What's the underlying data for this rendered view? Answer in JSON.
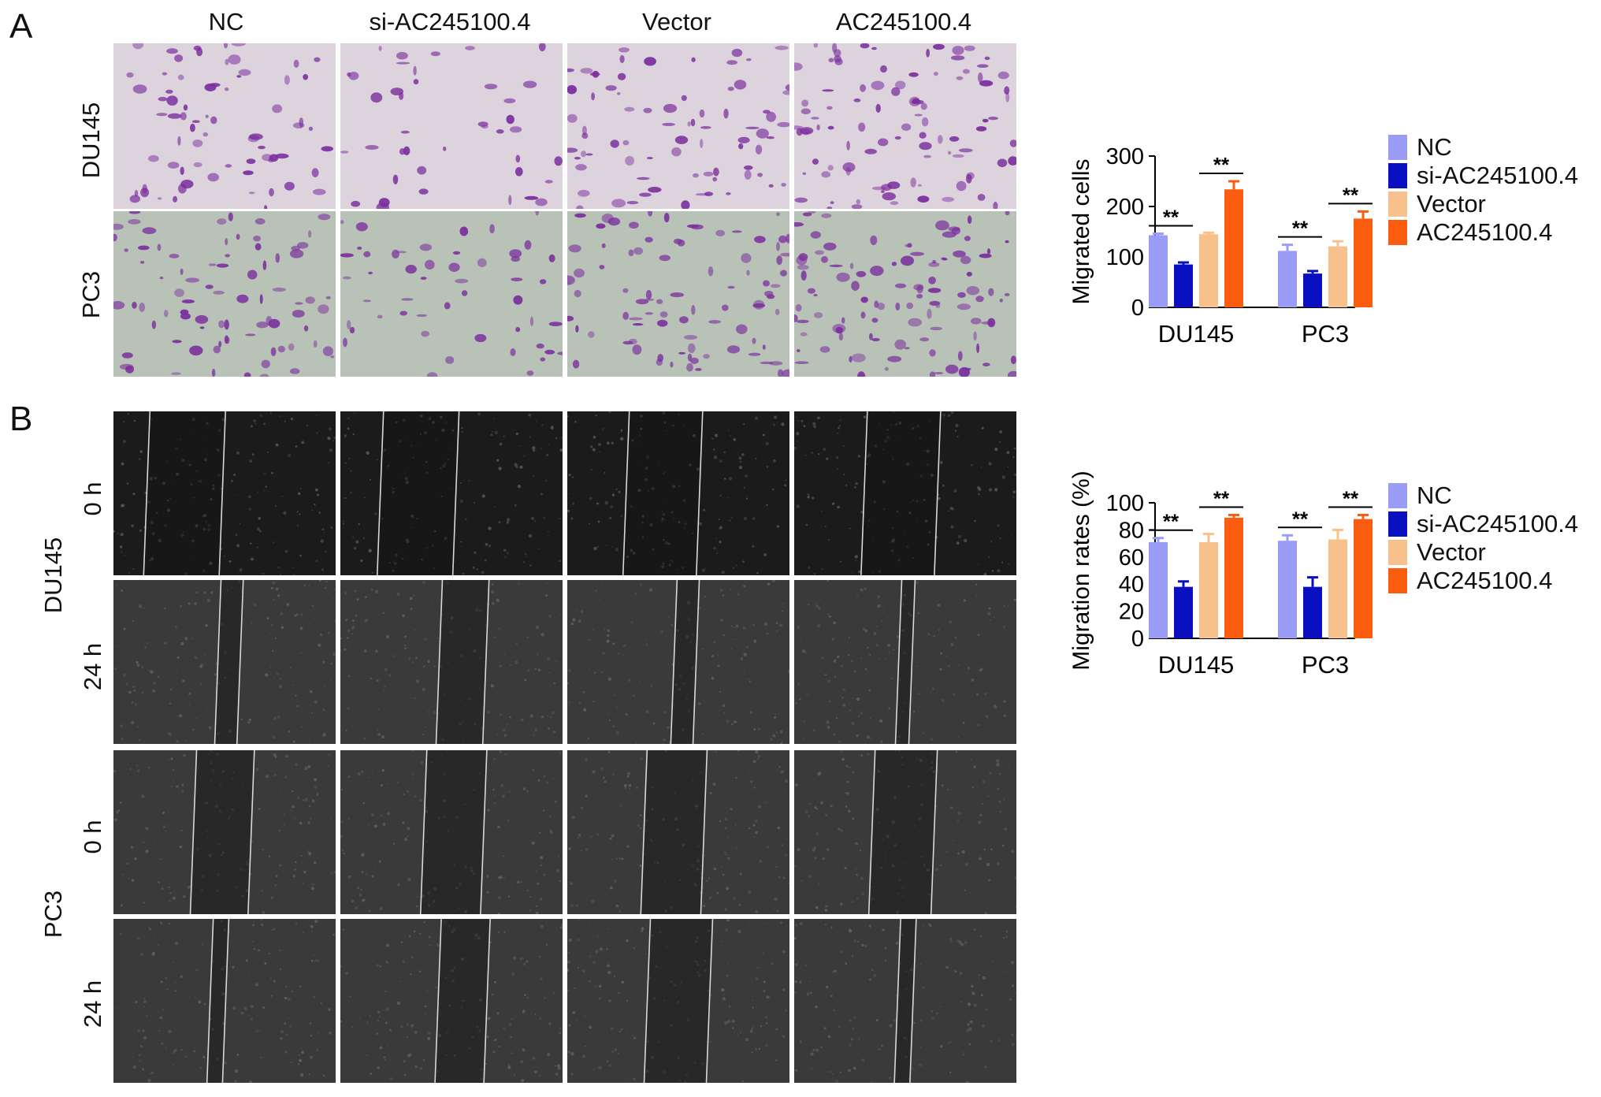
{
  "panels": {
    "a": {
      "letter": "A",
      "columns": [
        "NC",
        "si-AC245100.4",
        "Vector",
        "AC245100.4"
      ],
      "rows": [
        "DU145",
        "PC3"
      ]
    },
    "b": {
      "letter": "B",
      "cell_lines": [
        "DU145",
        "PC3"
      ],
      "timepoints": [
        "0 h",
        "24 h"
      ]
    }
  },
  "micrograph_colors": {
    "transwell_du145_bg": "#ddd3dd",
    "transwell_pc3_bg": "#b9c2b6",
    "transwell_stain": "#7b2f9e",
    "scratch_du145_0h_bg": "#1b1b1b",
    "scratch_bg": "#3a3a3a",
    "scratch_edge": "#d8d8d8"
  },
  "scratch_gap": {
    "DU145": {
      "0 h": [
        0.34,
        0.34,
        0.33,
        0.33
      ],
      "24 h": [
        0.1,
        0.21,
        0.1,
        0.06
      ]
    },
    "PC3": {
      "0 h": [
        0.26,
        0.27,
        0.27,
        0.28
      ],
      "24 h": [
        0.07,
        0.22,
        0.28,
        0.07
      ]
    }
  },
  "chart_data": [
    {
      "type": "bar",
      "categories": [
        "DU145",
        "PC3"
      ],
      "ylabel": "Migrated cells",
      "xlabel": "",
      "ylim": [
        0,
        300
      ],
      "yticks": [
        0,
        100,
        200,
        300
      ],
      "legend_position": "right",
      "series": [
        {
          "name": "NC",
          "color": "#9b9cf6",
          "values": [
            143,
            112
          ],
          "errors": [
            3,
            12
          ]
        },
        {
          "name": "si-AC245100.4",
          "color": "#0a0fbf",
          "values": [
            85,
            67
          ],
          "errors": [
            4,
            5
          ]
        },
        {
          "name": "Vector",
          "color": "#f7c08c",
          "values": [
            145,
            121
          ],
          "errors": [
            3,
            10
          ]
        },
        {
          "name": "AC245100.4",
          "color": "#fa5d0f",
          "values": [
            234,
            176
          ],
          "errors": [
            16,
            14
          ]
        }
      ],
      "significance": [
        {
          "category": "DU145",
          "pair": [
            0,
            1
          ],
          "label": "**"
        },
        {
          "category": "DU145",
          "pair": [
            2,
            3
          ],
          "label": "**"
        },
        {
          "category": "PC3",
          "pair": [
            0,
            1
          ],
          "label": "**"
        },
        {
          "category": "PC3",
          "pair": [
            2,
            3
          ],
          "label": "**"
        }
      ]
    },
    {
      "type": "bar",
      "categories": [
        "DU145",
        "PC3"
      ],
      "ylabel": "Migration rates (%)",
      "xlabel": "",
      "ylim": [
        0,
        100
      ],
      "yticks": [
        0,
        20,
        40,
        60,
        80,
        100
      ],
      "legend_position": "right",
      "series": [
        {
          "name": "NC",
          "color": "#9b9cf6",
          "values": [
            71,
            72
          ],
          "errors": [
            3,
            4
          ]
        },
        {
          "name": "si-AC245100.4",
          "color": "#0a0fbf",
          "values": [
            38,
            38
          ],
          "errors": [
            4,
            7
          ]
        },
        {
          "name": "Vector",
          "color": "#f7c08c",
          "values": [
            71,
            73
          ],
          "errors": [
            6,
            7
          ]
        },
        {
          "name": "AC245100.4",
          "color": "#fa5d0f",
          "values": [
            89,
            88
          ],
          "errors": [
            2,
            3
          ]
        }
      ],
      "significance": [
        {
          "category": "DU145",
          "pair": [
            0,
            1
          ],
          "label": "**"
        },
        {
          "category": "DU145",
          "pair": [
            2,
            3
          ],
          "label": "**"
        },
        {
          "category": "PC3",
          "pair": [
            0,
            1
          ],
          "label": "**"
        },
        {
          "category": "PC3",
          "pair": [
            2,
            3
          ],
          "label": "**"
        }
      ]
    }
  ]
}
